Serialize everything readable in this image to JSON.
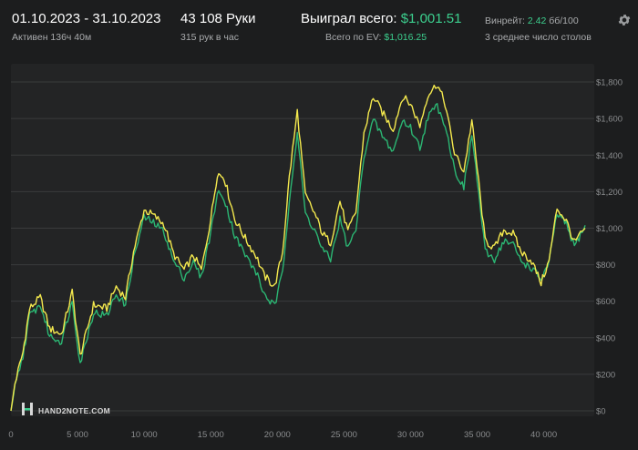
{
  "header": {
    "date_range": "01.10.2023 - 31.10.2023",
    "active_time": "Активен 136ч 40м",
    "hands": "43 108 Руки",
    "hands_per_hour": "315 рук в час",
    "won_total_label": "Выиграл всего:",
    "won_total_value": "$1,001.51",
    "ev_label": "Всего по EV:",
    "ev_value": "$1,016.25",
    "winrate_label": "Винрейт:",
    "winrate_value": "2.42",
    "winrate_unit": "бб/100",
    "avg_tables": "3 среднее число столов",
    "settings_icon": "gear-icon"
  },
  "watermark": {
    "text": "HAND2NOTE.COM",
    "logo_icon": "hand2note-logo-icon"
  },
  "colors": {
    "background": "#1c1d1e",
    "plot_background": "#232425",
    "grid": "#3a3b3c",
    "won_line": "#f4e94e",
    "ev_line": "#2bb673",
    "accent_green": "#3ccf8e",
    "tick_text": "#8a8c8e"
  },
  "chart_data": {
    "type": "line",
    "xlim": [
      0,
      43108
    ],
    "ylim": [
      0,
      1900
    ],
    "x_ticks": [
      0,
      5000,
      10000,
      15000,
      20000,
      25000,
      30000,
      35000,
      40000
    ],
    "x_tick_labels": [
      "0",
      "5 000",
      "10 000",
      "15 000",
      "20 000",
      "25 000",
      "30 000",
      "35 000",
      "40 000"
    ],
    "y_ticks": [
      0,
      200,
      400,
      600,
      800,
      1000,
      1200,
      1400,
      1600,
      1800
    ],
    "y_tick_labels": [
      "$0",
      "$200",
      "$400",
      "$600",
      "$800",
      "$1,000",
      "$1,200",
      "$1,400",
      "$1,600",
      "$1,800"
    ],
    "grid": true,
    "legend": "none",
    "series": [
      {
        "color": "#f4e94e",
        "points": [
          [
            0,
            0
          ],
          [
            300,
            150
          ],
          [
            900,
            320
          ],
          [
            1400,
            560
          ],
          [
            2200,
            620
          ],
          [
            2900,
            450
          ],
          [
            3800,
            420
          ],
          [
            4600,
            650
          ],
          [
            5200,
            300
          ],
          [
            6200,
            580
          ],
          [
            7200,
            560
          ],
          [
            7900,
            680
          ],
          [
            8600,
            620
          ],
          [
            9200,
            870
          ],
          [
            10000,
            1100
          ],
          [
            10700,
            1070
          ],
          [
            11500,
            1020
          ],
          [
            12200,
            860
          ],
          [
            13000,
            770
          ],
          [
            13700,
            850
          ],
          [
            14300,
            770
          ],
          [
            15000,
            1050
          ],
          [
            15500,
            1300
          ],
          [
            16000,
            1280
          ],
          [
            16800,
            1050
          ],
          [
            17700,
            930
          ],
          [
            18400,
            850
          ],
          [
            19000,
            740
          ],
          [
            19800,
            680
          ],
          [
            20400,
            870
          ],
          [
            20900,
            1280
          ],
          [
            21500,
            1640
          ],
          [
            22100,
            1180
          ],
          [
            22800,
            1080
          ],
          [
            23400,
            970
          ],
          [
            24000,
            920
          ],
          [
            24700,
            1150
          ],
          [
            25300,
            980
          ],
          [
            25900,
            1090
          ],
          [
            26500,
            1520
          ],
          [
            27200,
            1720
          ],
          [
            28000,
            1620
          ],
          [
            28700,
            1540
          ],
          [
            29400,
            1720
          ],
          [
            30000,
            1680
          ],
          [
            30700,
            1560
          ],
          [
            31300,
            1730
          ],
          [
            32000,
            1790
          ],
          [
            32600,
            1680
          ],
          [
            33300,
            1410
          ],
          [
            34000,
            1310
          ],
          [
            34600,
            1590
          ],
          [
            35000,
            1330
          ],
          [
            35600,
            930
          ],
          [
            36300,
            890
          ],
          [
            37000,
            990
          ],
          [
            37700,
            970
          ],
          [
            38300,
            870
          ],
          [
            39100,
            820
          ],
          [
            39800,
            700
          ],
          [
            40400,
            820
          ],
          [
            41000,
            1110
          ],
          [
            41700,
            1040
          ],
          [
            42300,
            920
          ],
          [
            43108,
            1000
          ]
        ]
      },
      {
        "color": "#2bb673",
        "points": [
          [
            0,
            0
          ],
          [
            300,
            130
          ],
          [
            900,
            300
          ],
          [
            1400,
            520
          ],
          [
            2200,
            580
          ],
          [
            2900,
            410
          ],
          [
            3800,
            380
          ],
          [
            4600,
            600
          ],
          [
            5200,
            260
          ],
          [
            6200,
            540
          ],
          [
            7200,
            520
          ],
          [
            7900,
            640
          ],
          [
            8600,
            580
          ],
          [
            9200,
            830
          ],
          [
            10000,
            1060
          ],
          [
            10700,
            1030
          ],
          [
            11500,
            980
          ],
          [
            12200,
            820
          ],
          [
            13000,
            730
          ],
          [
            13700,
            810
          ],
          [
            14300,
            730
          ],
          [
            15000,
            980
          ],
          [
            15500,
            1190
          ],
          [
            16000,
            1170
          ],
          [
            16800,
            960
          ],
          [
            17700,
            840
          ],
          [
            18400,
            760
          ],
          [
            19000,
            640
          ],
          [
            19800,
            570
          ],
          [
            20400,
            760
          ],
          [
            20900,
            1160
          ],
          [
            21500,
            1520
          ],
          [
            22100,
            1080
          ],
          [
            22800,
            990
          ],
          [
            23400,
            880
          ],
          [
            24000,
            830
          ],
          [
            24700,
            1050
          ],
          [
            25300,
            890
          ],
          [
            25900,
            990
          ],
          [
            26500,
            1400
          ],
          [
            27200,
            1590
          ],
          [
            28000,
            1490
          ],
          [
            28700,
            1420
          ],
          [
            29400,
            1590
          ],
          [
            30000,
            1550
          ],
          [
            30700,
            1440
          ],
          [
            31300,
            1610
          ],
          [
            32000,
            1670
          ],
          [
            32600,
            1570
          ],
          [
            33300,
            1320
          ],
          [
            34000,
            1220
          ],
          [
            34600,
            1510
          ],
          [
            35000,
            1270
          ],
          [
            35600,
            870
          ],
          [
            36300,
            830
          ],
          [
            37000,
            930
          ],
          [
            37700,
            910
          ],
          [
            38300,
            820
          ],
          [
            39100,
            780
          ],
          [
            39800,
            720
          ],
          [
            40400,
            810
          ],
          [
            41000,
            1080
          ],
          [
            41700,
            1020
          ],
          [
            42300,
            900
          ],
          [
            43108,
            1016
          ]
        ]
      }
    ]
  }
}
